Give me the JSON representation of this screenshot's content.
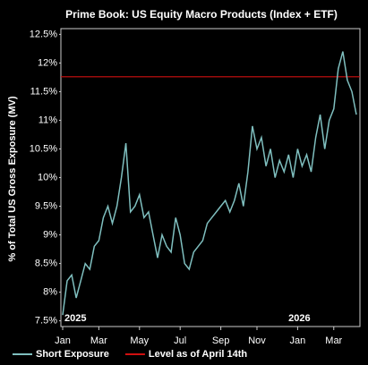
{
  "chart_data": {
    "type": "line",
    "title": "Prime Book: US Equity Macro Products (Index + ETF)",
    "y_label": "% of Total US Gross Exposure (MV)",
    "annotations": [
      {
        "text": "2025",
        "index": 0
      },
      {
        "text": "2026",
        "index": 52
      }
    ],
    "categories": [
      "Jan",
      null,
      null,
      null,
      null,
      null,
      null,
      null,
      "Mar",
      null,
      null,
      null,
      null,
      null,
      null,
      null,
      null,
      "May",
      null,
      null,
      null,
      null,
      null,
      null,
      null,
      null,
      "Jul",
      null,
      null,
      null,
      null,
      null,
      null,
      null,
      null,
      "Sep",
      null,
      null,
      null,
      null,
      null,
      null,
      null,
      "Nov",
      null,
      null,
      null,
      null,
      null,
      null,
      null,
      null,
      "Jan",
      null,
      null,
      null,
      null,
      null,
      null,
      null,
      "Mar",
      null,
      null,
      null,
      null,
      null
    ],
    "series": [
      {
        "name": "Short Exposure",
        "color": "#7fbfbf",
        "values": [
          7.6,
          8.2,
          8.3,
          7.9,
          8.2,
          8.5,
          8.4,
          8.8,
          8.9,
          9.3,
          9.5,
          9.2,
          9.5,
          10.0,
          10.6,
          9.4,
          9.5,
          9.7,
          9.3,
          9.4,
          9.0,
          8.6,
          9.0,
          8.8,
          8.7,
          9.3,
          9.0,
          8.5,
          8.4,
          8.7,
          8.8,
          8.9,
          9.2,
          9.3,
          9.4,
          9.5,
          9.6,
          9.4,
          9.6,
          9.9,
          9.5,
          10.1,
          10.9,
          10.5,
          10.7,
          10.2,
          10.5,
          10.0,
          10.3,
          10.1,
          10.4,
          10.0,
          10.5,
          10.2,
          10.4,
          10.1,
          10.7,
          11.1,
          10.5,
          11.0,
          11.2,
          11.9,
          12.2,
          11.7,
          11.5,
          11.1
        ]
      }
    ],
    "reference_lines": [
      {
        "name": "Level as of April 14th",
        "value": 11.76,
        "color": "#d01010"
      }
    ],
    "ylim": [
      7.4,
      12.6
    ],
    "yticks": [
      {
        "value": 7.5,
        "label": "7.5%"
      },
      {
        "value": 8,
        "label": "8%"
      },
      {
        "value": 8.5,
        "label": "8.5%"
      },
      {
        "value": 9,
        "label": "9%"
      },
      {
        "value": 9.5,
        "label": "9.5%"
      },
      {
        "value": 10,
        "label": "10%"
      },
      {
        "value": 10.5,
        "label": "10.5%"
      },
      {
        "value": 11,
        "label": "11%"
      },
      {
        "value": 11.5,
        "label": "11.5%"
      },
      {
        "value": 12,
        "label": "12%"
      },
      {
        "value": 12.5,
        "label": "12.5%"
      }
    ],
    "grid": false
  }
}
